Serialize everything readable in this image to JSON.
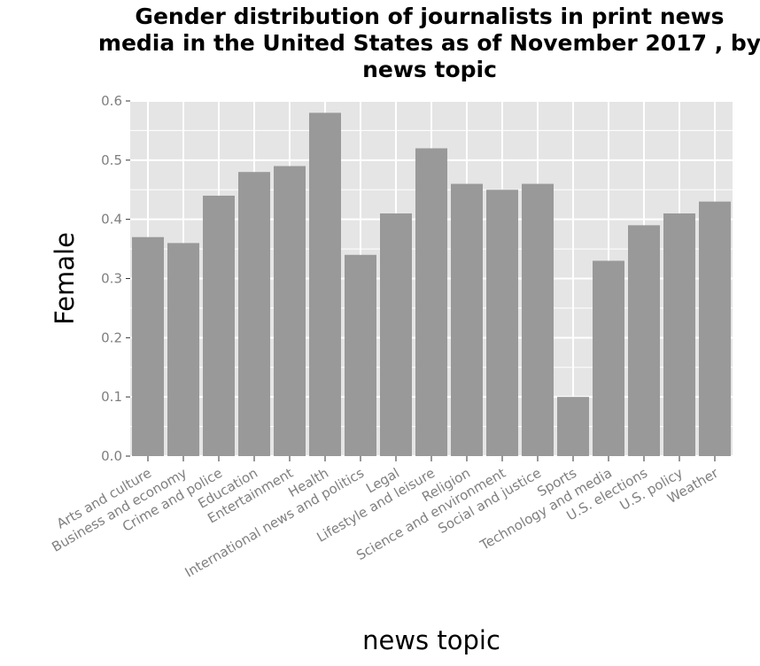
{
  "chart_data": {
    "type": "bar",
    "title": "Gender distribution of journalists in print news media in the United States as of November 2017 , by news topic",
    "xlabel": "news topic",
    "ylabel": "Female",
    "ylim": [
      0,
      0.6
    ],
    "yticks": [
      "0.0",
      "0.1",
      "0.2",
      "0.3",
      "0.4",
      "0.5",
      "0.6"
    ],
    "categories": [
      "Arts and culture",
      "Business and economy",
      "Crime and police",
      "Education",
      "Entertainment",
      "Health",
      "International news and politics",
      "Legal",
      "Lifestyle and leisure",
      "Religion",
      "Science and environment",
      "Social and justice",
      "Sports",
      "Technology and media",
      "U.S. elections",
      "U.S. policy",
      "Weather"
    ],
    "values": [
      0.37,
      0.36,
      0.44,
      0.48,
      0.49,
      0.58,
      0.34,
      0.41,
      0.52,
      0.46,
      0.45,
      0.46,
      0.1,
      0.33,
      0.39,
      0.41,
      0.43
    ],
    "grid": true,
    "colors": {
      "panel": "#e5e5e5",
      "bar": "#999999",
      "grid": "#ffffff",
      "tick": "#7f7f7f"
    }
  }
}
